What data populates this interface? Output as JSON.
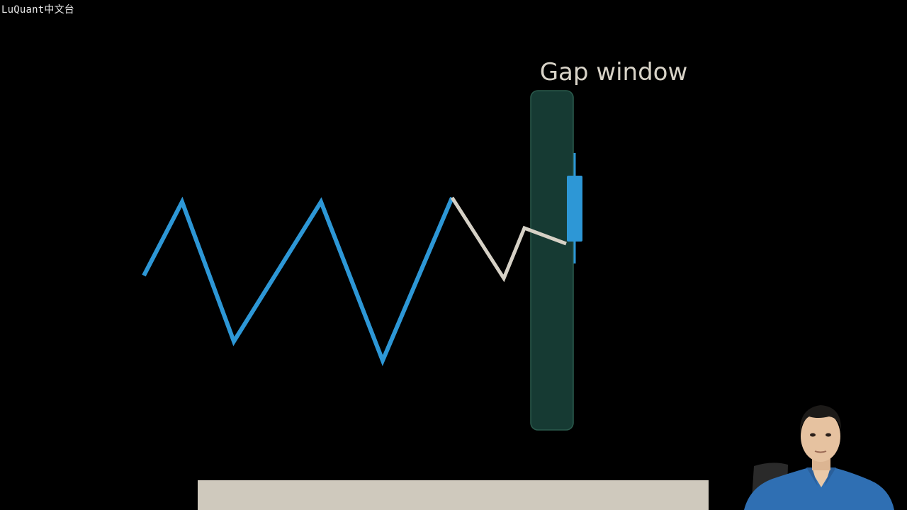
{
  "watermark": "LuQuant中文台",
  "diagram": {
    "label": "Gap window",
    "colors": {
      "background": "#000000",
      "trend_line": "#2d97d6",
      "pullback_line": "#d6d1c6",
      "gap_window_fill": "#163a33",
      "gap_window_stroke": "#2a5a4c",
      "label_text": "#d8d3c8",
      "candle": "#2d97d6"
    },
    "icons": {
      "presenter": "presenter-video-thumbnail"
    }
  },
  "subtitle_bar": {
    "color": "#cfc9bd",
    "text": ""
  }
}
